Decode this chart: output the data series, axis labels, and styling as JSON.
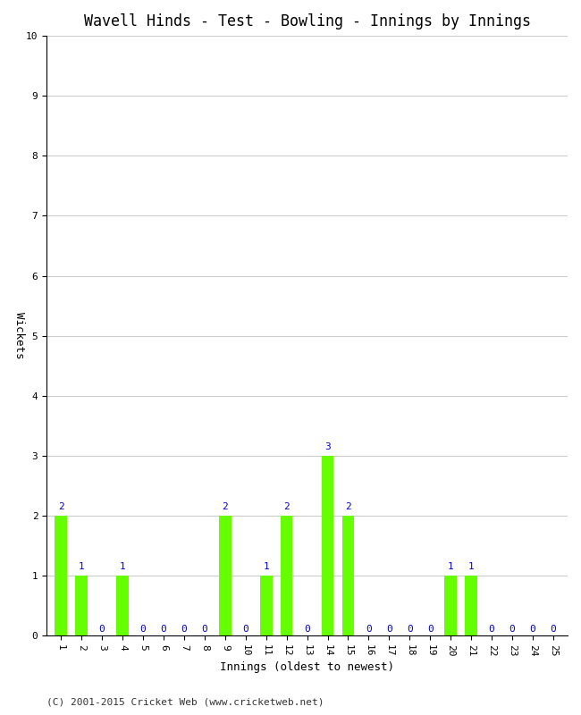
{
  "title": "Wavell Hinds - Test - Bowling - Innings by Innings",
  "xlabel": "Innings (oldest to newest)",
  "ylabel": "Wickets",
  "innings": [
    1,
    2,
    3,
    4,
    5,
    6,
    7,
    8,
    9,
    10,
    11,
    12,
    13,
    14,
    15,
    16,
    17,
    18,
    19,
    20,
    21,
    22,
    23,
    24,
    25
  ],
  "wickets": [
    2,
    1,
    0,
    1,
    0,
    0,
    0,
    0,
    2,
    0,
    1,
    2,
    0,
    3,
    2,
    0,
    0,
    0,
    0,
    1,
    1,
    0,
    0,
    0,
    0
  ],
  "bar_color": "#66ff00",
  "label_color": "#0000cc",
  "ylim": [
    0,
    10
  ],
  "yticks": [
    0,
    1,
    2,
    3,
    4,
    5,
    6,
    7,
    8,
    9,
    10
  ],
  "background_color": "#ffffff",
  "grid_color": "#cccccc",
  "title_fontsize": 12,
  "axis_label_fontsize": 9,
  "tick_fontsize": 8,
  "label_fontsize": 8,
  "footer": "(C) 2001-2015 Cricket Web (www.cricketweb.net)"
}
